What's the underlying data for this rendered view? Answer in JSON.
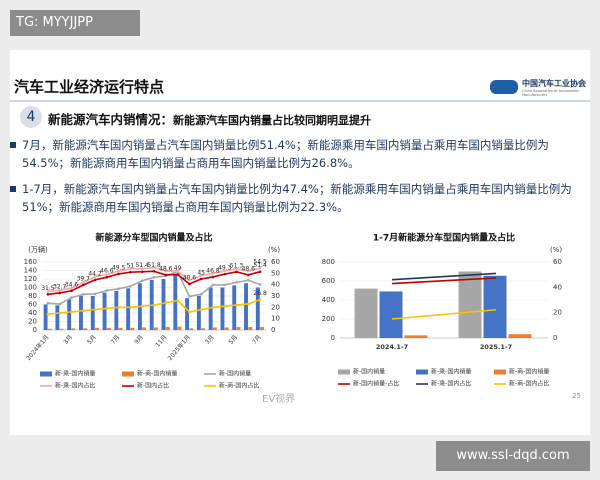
{
  "watermark": "TG: MYYJJPP",
  "header": {
    "title": "汽车工业经济运行特点",
    "logo": "中国汽车工业协会",
    "logo_sub": "China Association of Automobile Manufacturers"
  },
  "section": {
    "number": "4",
    "title": "新能源汽车内销情况：",
    "subtitle": "新能源汽车国内销量占比较同期明显提升"
  },
  "bullets": [
    "7月，新能源汽车国内销量占汽车国内销量比例51.4%；新能源乘用车国内销量占乘用车国内销量比例为54.5%；新能源商用车国内销量占商用车国内销量比例为26.8%。",
    "1-7月，新能源汽车国内销量占汽车国内销量比例为47.4%；新能源乘用车国内销量占乘用车国内销量比例为51%；新能源商用车国内销量占商用车国内销量比例为22.3%。"
  ],
  "chart_data": [
    {
      "type": "combo",
      "title": "新能源分车型国内销量及占比",
      "y_label": "(万辆)",
      "y2_label": "(%)",
      "categories": [
        "2024年1月",
        null,
        "3月",
        null,
        "5月",
        null,
        "7月",
        null,
        "9月",
        null,
        "11月",
        null,
        "2025年1月",
        null,
        "3月",
        null,
        "5月",
        null,
        "7月"
      ],
      "ylim": [
        0,
        160
      ],
      "yticks": [
        0,
        20,
        40,
        60,
        80,
        100,
        120,
        140,
        160
      ],
      "y2lim": [
        0,
        60
      ],
      "y2ticks": [
        0,
        10,
        20,
        30,
        40,
        50,
        60
      ],
      "grid": true,
      "rotate_labels": true,
      "series": [
        {
          "name": "新-乘-国内销量",
          "type": "bar",
          "color": "#4472c4",
          "values": [
            60,
            58,
            72,
            80,
            80,
            88,
            92,
            98,
            110,
            118,
            120,
            130,
            75,
            80,
            100,
            100,
            105,
            110,
            100
          ]
        },
        {
          "name": "新-商-国内销量",
          "type": "bar",
          "color": "#ed7d31",
          "values": [
            3,
            3,
            4,
            4,
            5,
            5,
            5,
            5,
            6,
            6,
            7,
            8,
            4,
            4,
            6,
            6,
            7,
            7,
            7
          ]
        },
        {
          "name": "新-国内销量",
          "type": "line",
          "color": "#a6a6a6",
          "values": [
            63,
            61,
            76,
            84,
            85,
            93,
            97,
            103,
            116,
            124,
            127,
            138,
            79,
            84,
            106,
            106,
            112,
            117,
            107
          ]
        },
        {
          "name": "新-乘-国内占比",
          "type": "line",
          "color": "#f4a6b0",
          "label_last": true,
          "values": [
            34,
            35,
            37,
            42,
            47,
            49,
            52,
            54,
            54,
            55,
            52,
            52,
            44,
            48,
            50,
            52,
            54,
            52,
            54.5
          ]
        },
        {
          "name": "新-国内占比",
          "type": "line",
          "color": "#c00000",
          "labels": true,
          "values": [
            31.5,
            32.7,
            34.6,
            39.7,
            44.2,
            46.6,
            49.5,
            51,
            51.4,
            51.8,
            48.6,
            49,
            40.6,
            45,
            46.8,
            49.3,
            51.3,
            48.6,
            51.4
          ]
        },
        {
          "name": "新-商-国内占比",
          "type": "line",
          "color": "#ffc000",
          "label_last": true,
          "values": [
            14,
            15,
            16,
            17,
            18,
            19,
            20,
            20,
            21,
            22,
            24,
            26,
            16,
            18,
            20,
            21,
            22,
            23,
            26.8
          ]
        }
      ]
    },
    {
      "type": "combo",
      "title": "1-7月新能源分车型国内销量及占比",
      "y2_label": "(%)",
      "categories": [
        "2024.1-7",
        "2025.1-7"
      ],
      "ylim": [
        0,
        800
      ],
      "yticks": [
        0,
        200,
        400,
        600,
        800
      ],
      "y2lim": [
        0,
        60
      ],
      "y2ticks": [
        0,
        20,
        40,
        60
      ],
      "grid": true,
      "rotate_labels": false,
      "series": [
        {
          "name": "新-国内销量",
          "type": "bar",
          "color": "#a6a6a6",
          "values": [
            520,
            700
          ]
        },
        {
          "name": "新-乘-国内销量",
          "type": "bar",
          "color": "#4472c4",
          "values": [
            490,
            655
          ]
        },
        {
          "name": "新-商-国内销量",
          "type": "bar",
          "color": "#ed7d31",
          "values": [
            28,
            40
          ]
        },
        {
          "name": "新-国内销量-占比",
          "type": "line",
          "color": "#c00000",
          "values": [
            43,
            47.4
          ]
        },
        {
          "name": "新-乘-国内占比",
          "type": "line",
          "color": "#1f3864",
          "values": [
            46,
            51
          ]
        },
        {
          "name": "新-商-国内占比",
          "type": "line",
          "color": "#ffc000",
          "values": [
            15,
            22.3
          ]
        }
      ]
    }
  ],
  "footer": {
    "source": "EV视界",
    "page": "25",
    "site": "www.ssl-dqd.com"
  }
}
